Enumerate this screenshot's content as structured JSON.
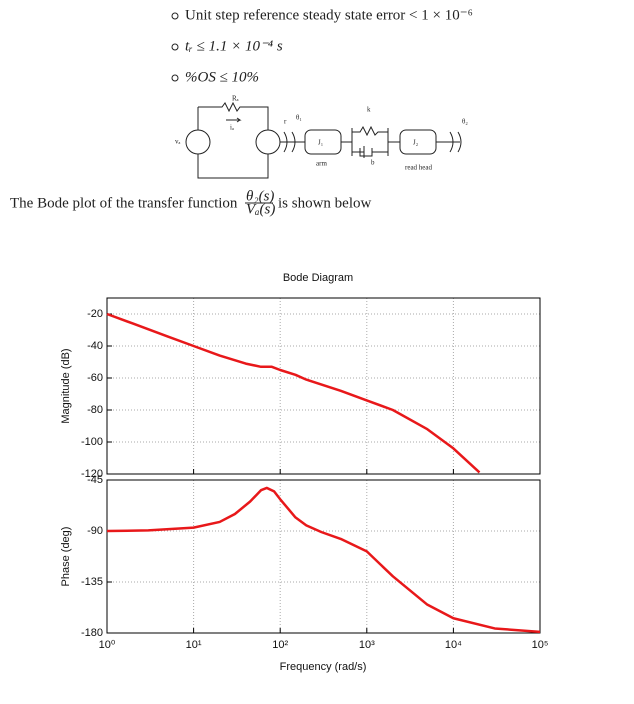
{
  "bullets": [
    "Unit step reference steady state error < 1 × 10⁻⁶",
    "tᵣ ≤ 1.1 × 10⁻⁴ s",
    "%OS ≤ 10%"
  ],
  "circuit": {
    "labels": [
      "Rₐ",
      "iₐ",
      "vₐ",
      "r",
      "θ₁",
      "J₁",
      "arm",
      "k",
      "b",
      "J₂",
      "read head",
      "θ₂"
    ]
  },
  "caption": {
    "before": "The Bode plot of the transfer function",
    "numerator": "θ₂(s)",
    "denominator": "Vₐ(s)",
    "after": "is shown below"
  },
  "chart_data": [
    {
      "type": "line",
      "title": "Bode Diagram",
      "ylabel": "Magnitude (dB)",
      "xscale": "log",
      "grid": true,
      "color": "#e8181a",
      "x": [
        1,
        2,
        5,
        10,
        20,
        40,
        60,
        80,
        100,
        150,
        200,
        500,
        1000,
        2000,
        5000,
        10000,
        20000
      ],
      "values": [
        -20,
        -26,
        -34,
        -40,
        -46,
        -51,
        -53,
        -53,
        -55,
        -58,
        -61,
        -68,
        -74,
        -80,
        -92,
        -104,
        -119
      ],
      "xlim": [
        1,
        100000
      ],
      "xticks": [
        1,
        10,
        100,
        1000,
        10000,
        100000
      ],
      "ylim": [
        -120,
        -10
      ],
      "yticks": [
        -120,
        -100,
        -80,
        -60,
        -40,
        -20
      ]
    },
    {
      "type": "line",
      "xlabel": "Frequency (rad/s)",
      "ylabel": "Phase (deg)",
      "xscale": "log",
      "grid": true,
      "color": "#e8181a",
      "x": [
        1,
        3,
        10,
        20,
        30,
        45,
        60,
        70,
        85,
        100,
        150,
        200,
        300,
        500,
        1000,
        2000,
        5000,
        10000,
        30000,
        100000
      ],
      "values": [
        -90,
        -89.5,
        -87,
        -82,
        -75,
        -64,
        -54,
        -52,
        -55,
        -62,
        -78,
        -85,
        -91,
        -97,
        -108,
        -130,
        -155,
        -167,
        -176,
        -179
      ],
      "xlim": [
        1,
        100000
      ],
      "xticks": [
        {
          "value": 1,
          "label": "10⁰"
        },
        {
          "value": 10,
          "label": "10¹"
        },
        {
          "value": 100,
          "label": "10²"
        },
        {
          "value": 1000,
          "label": "10³"
        },
        {
          "value": 10000,
          "label": "10⁴"
        },
        {
          "value": 100000,
          "label": "10⁵"
        }
      ],
      "ylim": [
        -180,
        -45
      ],
      "yticks": [
        -180,
        -135,
        -90,
        -45
      ]
    }
  ]
}
